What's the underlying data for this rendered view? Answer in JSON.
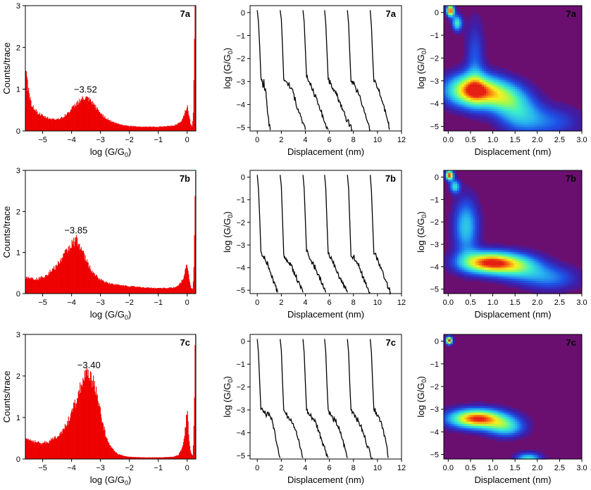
{
  "colors": {
    "histogram_fill": "#ee0000",
    "trace_stroke": "#000000",
    "density_background": "#6a0f70",
    "axis": "#000000"
  },
  "chart_data": [
    {
      "type": "bar",
      "panel": "7a",
      "chart_kind": "histogram",
      "xlabel_main": "log (G/G",
      "xlabel_sub": "0",
      "xlabel_end": ")",
      "ylabel": "Counts/trace",
      "xlim": [
        -5.6,
        0.3
      ],
      "ylim": [
        0,
        3
      ],
      "xticks": [
        -5,
        -4,
        -3,
        -2,
        -1,
        0
      ],
      "yticks": [
        0,
        1,
        2,
        3
      ],
      "peak_label": "−3.52",
      "peak_x": -3.52,
      "profile": {
        "x": [
          -5.6,
          -5.5,
          -5.4,
          -5.2,
          -5.0,
          -4.8,
          -4.6,
          -4.4,
          -4.2,
          -4.0,
          -3.8,
          -3.6,
          -3.52,
          -3.4,
          -3.2,
          -3.0,
          -2.8,
          -2.6,
          -2.4,
          -2.2,
          -2.0,
          -1.5,
          -1.0,
          -0.5,
          -0.3,
          -0.2,
          -0.1,
          0.0,
          0.05,
          0.12,
          0.18,
          0.22,
          0.26,
          0.3
        ],
        "y": [
          1.5,
          1.0,
          0.65,
          0.45,
          0.35,
          0.3,
          0.28,
          0.3,
          0.38,
          0.52,
          0.68,
          0.77,
          0.78,
          0.74,
          0.6,
          0.42,
          0.3,
          0.22,
          0.17,
          0.14,
          0.12,
          0.1,
          0.1,
          0.12,
          0.18,
          0.25,
          0.4,
          0.62,
          0.42,
          0.15,
          0.1,
          0.6,
          3.0,
          3.0
        ]
      }
    },
    {
      "type": "line",
      "panel": "7a",
      "chart_kind": "traces",
      "xlabel": "Displacement (nm)",
      "ylabel_main": "log (G/G",
      "ylabel_sub": "0",
      "ylabel_end": ")",
      "xlim": [
        -0.6,
        12
      ],
      "ylim": [
        -5.15,
        0.3
      ],
      "xticks": [
        0,
        2,
        4,
        6,
        8,
        10,
        12
      ],
      "yticks": [
        0,
        -1,
        -2,
        -3,
        -4,
        -5
      ],
      "traces": [
        {
          "x": [
            0.0,
            0.1,
            0.2,
            0.3,
            0.4,
            0.5,
            0.55,
            0.6,
            0.7,
            0.8,
            0.9,
            1.0,
            1.1
          ],
          "y": [
            0.1,
            -0.4,
            -1.5,
            -2.8,
            -3.0,
            -3.2,
            -2.9,
            -3.3,
            -3.4,
            -4.0,
            -4.5,
            -4.9,
            -5.1
          ]
        },
        {
          "x": [
            1.9,
            2.0,
            2.1,
            2.2,
            2.4,
            2.6,
            2.8,
            3.0,
            3.2,
            3.4,
            3.6,
            3.8,
            4.0
          ],
          "y": [
            0.1,
            -0.3,
            -1.5,
            -2.9,
            -3.0,
            -3.1,
            -3.3,
            -3.5,
            -3.9,
            -4.2,
            -4.5,
            -4.8,
            -5.1
          ]
        },
        {
          "x": [
            3.8,
            3.9,
            4.0,
            4.1,
            4.3,
            4.5,
            4.7,
            4.9,
            5.1,
            5.3,
            5.5,
            5.7,
            5.9
          ],
          "y": [
            0.1,
            -0.4,
            -1.6,
            -2.8,
            -3.0,
            -3.2,
            -3.5,
            -3.7,
            -4.0,
            -4.3,
            -4.6,
            -4.9,
            -5.1
          ]
        },
        {
          "x": [
            5.6,
            5.7,
            5.8,
            5.9,
            6.1,
            6.3,
            6.5,
            6.7,
            6.9,
            7.1,
            7.3,
            7.5,
            7.7,
            7.9
          ],
          "y": [
            0.1,
            -0.5,
            -1.7,
            -2.9,
            -3.1,
            -3.3,
            -3.5,
            -3.7,
            -3.9,
            -4.2,
            -4.5,
            -4.7,
            -4.9,
            -5.1
          ]
        },
        {
          "x": [
            7.5,
            7.6,
            7.7,
            7.8,
            8.0,
            8.2,
            8.4,
            8.6,
            8.8,
            9.0,
            9.2,
            9.4
          ],
          "y": [
            0.1,
            -0.5,
            -1.8,
            -3.0,
            -3.1,
            -3.3,
            -3.5,
            -3.8,
            -4.1,
            -4.4,
            -4.8,
            -5.1
          ]
        },
        {
          "x": [
            9.4,
            9.5,
            9.6,
            9.7,
            9.9,
            10.1,
            10.3,
            10.5,
            10.7,
            10.9,
            11.0
          ],
          "y": [
            0.1,
            -0.6,
            -1.9,
            -3.0,
            -3.1,
            -3.4,
            -3.7,
            -4.0,
            -4.4,
            -4.8,
            -5.1
          ]
        }
      ]
    },
    {
      "type": "heatmap",
      "panel": "7a",
      "chart_kind": "2d-histogram",
      "xlabel": "Displacement (nm)",
      "ylabel_main": "log (G/G",
      "ylabel_sub": "0",
      "ylabel_end": ")",
      "xlim": [
        -0.1,
        3.0
      ],
      "ylim": [
        -5.2,
        0.3
      ],
      "xticks": [
        0.0,
        0.5,
        1.0,
        1.5,
        2.0,
        2.5,
        3.0
      ],
      "yticks": [
        0,
        -1,
        -2,
        -3,
        -4,
        -5
      ],
      "hotspots": [
        {
          "x": 0.05,
          "y": 0.1,
          "sx": 0.06,
          "sy": 0.18,
          "v": 1.0
        },
        {
          "x": 0.2,
          "y": -0.45,
          "sx": 0.08,
          "sy": 0.25,
          "v": 0.55
        },
        {
          "x": 0.55,
          "y": -3.4,
          "sx": 0.42,
          "sy": 0.5,
          "v": 0.95
        },
        {
          "x": 1.25,
          "y": -3.7,
          "sx": 0.35,
          "sy": 0.5,
          "v": 0.45
        },
        {
          "x": 0.6,
          "y": -2.0,
          "sx": 0.15,
          "sy": 1.2,
          "v": 0.25
        },
        {
          "x": 1.6,
          "y": -4.4,
          "sx": 0.35,
          "sy": 0.6,
          "v": 0.35
        },
        {
          "x": 2.3,
          "y": -4.8,
          "sx": 0.5,
          "sy": 0.5,
          "v": 0.25
        }
      ]
    },
    {
      "type": "bar",
      "panel": "7b",
      "chart_kind": "histogram",
      "xlabel_main": "log (G/G",
      "xlabel_sub": "0",
      "xlabel_end": ")",
      "ylabel": "Counts/trace",
      "xlim": [
        -5.6,
        0.3
      ],
      "ylim": [
        0,
        3
      ],
      "xticks": [
        -5,
        -4,
        -3,
        -2,
        -1,
        0
      ],
      "yticks": [
        0,
        1,
        2,
        3
      ],
      "peak_label": "−3.85",
      "peak_x": -3.85,
      "profile": {
        "x": [
          -5.6,
          -5.4,
          -5.2,
          -5.0,
          -4.8,
          -4.6,
          -4.4,
          -4.2,
          -4.0,
          -3.85,
          -3.7,
          -3.5,
          -3.3,
          -3.1,
          -2.9,
          -2.7,
          -2.5,
          -2.3,
          -2.0,
          -1.5,
          -1.0,
          -0.5,
          -0.3,
          -0.15,
          -0.05,
          0.0,
          0.05,
          0.12,
          0.2,
          0.24,
          0.28,
          0.3
        ],
        "y": [
          0.4,
          0.38,
          0.35,
          0.4,
          0.5,
          0.62,
          0.78,
          1.0,
          1.2,
          1.33,
          1.15,
          0.8,
          0.55,
          0.38,
          0.3,
          0.25,
          0.22,
          0.2,
          0.18,
          0.15,
          0.13,
          0.14,
          0.2,
          0.35,
          0.6,
          0.7,
          0.45,
          0.15,
          0.1,
          0.8,
          3.0,
          3.0
        ]
      }
    },
    {
      "type": "line",
      "panel": "7b",
      "chart_kind": "traces",
      "xlabel": "Displacement (nm)",
      "ylabel_main": "log (G/G",
      "ylabel_sub": "0",
      "ylabel_end": ")",
      "xlim": [
        -0.6,
        12
      ],
      "ylim": [
        -5.15,
        0.3
      ],
      "xticks": [
        0,
        2,
        4,
        6,
        8,
        10,
        12
      ],
      "yticks": [
        0,
        -1,
        -2,
        -3,
        -4,
        -5
      ],
      "traces": [
        {
          "x": [
            0.0,
            0.1,
            0.2,
            0.3,
            0.5,
            0.7,
            0.9,
            1.1,
            1.3,
            1.5,
            1.7
          ],
          "y": [
            0.1,
            -0.5,
            -1.8,
            -3.3,
            -3.5,
            -3.7,
            -3.9,
            -4.2,
            -4.5,
            -4.8,
            -5.1
          ]
        },
        {
          "x": [
            1.9,
            2.0,
            2.1,
            2.2,
            2.4,
            2.6,
            2.8,
            3.0,
            3.2,
            3.4,
            3.6,
            3.8
          ],
          "y": [
            0.1,
            -0.4,
            -1.9,
            -3.4,
            -3.6,
            -3.8,
            -3.9,
            -4.1,
            -4.4,
            -4.6,
            -4.9,
            -5.1
          ]
        },
        {
          "x": [
            3.8,
            3.9,
            4.0,
            4.1,
            4.3,
            4.5,
            4.7,
            4.9,
            5.1,
            5.3,
            5.5,
            5.7
          ],
          "y": [
            0.1,
            -0.5,
            -1.9,
            -3.3,
            -3.5,
            -3.7,
            -3.9,
            -4.1,
            -4.3,
            -4.6,
            -4.9,
            -5.1
          ]
        },
        {
          "x": [
            5.6,
            5.7,
            5.8,
            5.9,
            6.1,
            6.3,
            6.5,
            6.7,
            6.9,
            7.1,
            7.3,
            7.5
          ],
          "y": [
            0.1,
            -0.5,
            -2.0,
            -3.4,
            -3.6,
            -3.8,
            -4.0,
            -4.2,
            -4.5,
            -4.7,
            -4.9,
            -5.1
          ]
        },
        {
          "x": [
            7.5,
            7.6,
            7.7,
            7.8,
            8.0,
            8.2,
            8.4,
            8.6,
            8.8,
            9.0,
            9.2,
            9.4
          ],
          "y": [
            0.1,
            -0.5,
            -2.0,
            -3.5,
            -3.5,
            -3.7,
            -3.9,
            -4.2,
            -4.4,
            -4.7,
            -4.9,
            -5.1
          ]
        },
        {
          "x": [
            9.4,
            9.5,
            9.6,
            9.7,
            9.9,
            10.1,
            10.3,
            10.5,
            10.7,
            10.9,
            11.1
          ],
          "y": [
            0.1,
            -0.6,
            -2.0,
            -3.4,
            -3.5,
            -3.8,
            -4.0,
            -4.3,
            -4.6,
            -4.9,
            -5.1
          ]
        }
      ]
    },
    {
      "type": "heatmap",
      "panel": "7b",
      "chart_kind": "2d-histogram",
      "xlabel": "Displacement (nm)",
      "ylabel_main": "log (G/G",
      "ylabel_sub": "0",
      "ylabel_end": ")",
      "xlim": [
        -0.1,
        3.0
      ],
      "ylim": [
        -5.2,
        0.3
      ],
      "xticks": [
        0.0,
        0.5,
        1.0,
        1.5,
        2.0,
        2.5,
        3.0
      ],
      "yticks": [
        0,
        -1,
        -2,
        -3,
        -4,
        -5
      ],
      "hotspots": [
        {
          "x": 0.03,
          "y": 0.1,
          "sx": 0.06,
          "sy": 0.15,
          "v": 1.0
        },
        {
          "x": 0.15,
          "y": -0.4,
          "sx": 0.08,
          "sy": 0.2,
          "v": 0.5
        },
        {
          "x": 0.9,
          "y": -3.8,
          "sx": 0.45,
          "sy": 0.35,
          "v": 0.95
        },
        {
          "x": 0.4,
          "y": -2.2,
          "sx": 0.2,
          "sy": 0.9,
          "v": 0.45
        },
        {
          "x": 1.6,
          "y": -4.0,
          "sx": 0.4,
          "sy": 0.4,
          "v": 0.45
        },
        {
          "x": 2.3,
          "y": -4.5,
          "sx": 0.45,
          "sy": 0.4,
          "v": 0.3
        }
      ]
    },
    {
      "type": "bar",
      "panel": "7c",
      "chart_kind": "histogram",
      "xlabel_main": "log (G/G",
      "xlabel_sub": "0",
      "xlabel_end": ")",
      "ylabel": "Counts/trace",
      "xlim": [
        -5.6,
        0.3
      ],
      "ylim": [
        0,
        3
      ],
      "xticks": [
        -5,
        -4,
        -3,
        -2,
        -1,
        0
      ],
      "yticks": [
        0,
        1,
        2,
        3
      ],
      "peak_label": "−3.40",
      "peak_x": -3.4,
      "profile": {
        "x": [
          -5.6,
          -5.4,
          -5.2,
          -5.0,
          -4.8,
          -4.6,
          -4.4,
          -4.2,
          -4.0,
          -3.8,
          -3.6,
          -3.4,
          -3.2,
          -3.0,
          -2.8,
          -2.6,
          -2.4,
          -2.2,
          -2.0,
          -1.5,
          -1.0,
          -0.5,
          -0.3,
          -0.15,
          -0.05,
          0.0,
          0.05,
          0.12,
          0.2,
          0.24,
          0.28,
          0.3
        ],
        "y": [
          0.5,
          0.45,
          0.4,
          0.38,
          0.42,
          0.5,
          0.62,
          0.8,
          1.1,
          1.5,
          1.9,
          2.05,
          1.8,
          1.1,
          0.5,
          0.25,
          0.12,
          0.08,
          0.05,
          0.04,
          0.04,
          0.05,
          0.1,
          0.3,
          0.8,
          1.25,
          0.6,
          0.15,
          0.08,
          1.0,
          3.0,
          3.0
        ]
      }
    },
    {
      "type": "line",
      "panel": "7c",
      "chart_kind": "traces",
      "xlabel": "Displacement (nm)",
      "ylabel_main": "log (G/G",
      "ylabel_sub": "0",
      "ylabel_end": ")",
      "xlim": [
        -0.6,
        12
      ],
      "ylim": [
        -5.15,
        0.3
      ],
      "xticks": [
        0,
        2,
        4,
        6,
        8,
        10,
        12
      ],
      "yticks": [
        0,
        -1,
        -2,
        -3,
        -4,
        -5
      ],
      "traces": [
        {
          "x": [
            0.0,
            0.1,
            0.2,
            0.3,
            0.5,
            0.7,
            0.9,
            1.1,
            1.3,
            1.5,
            1.7,
            1.9
          ],
          "y": [
            0.1,
            -0.5,
            -1.8,
            -3.0,
            -3.1,
            -3.2,
            -3.1,
            -3.3,
            -3.6,
            -4.1,
            -4.6,
            -5.1
          ]
        },
        {
          "x": [
            1.9,
            2.0,
            2.1,
            2.2,
            2.4,
            2.6,
            2.8,
            3.0,
            3.2,
            3.4,
            3.6,
            3.8
          ],
          "y": [
            0.1,
            -0.4,
            -1.8,
            -3.0,
            -3.2,
            -3.3,
            -3.4,
            -3.6,
            -3.9,
            -4.3,
            -4.7,
            -5.1
          ]
        },
        {
          "x": [
            3.8,
            3.9,
            4.0,
            4.1,
            4.3,
            4.5,
            4.7,
            4.9,
            5.1,
            5.3,
            5.5,
            5.7,
            5.9
          ],
          "y": [
            0.1,
            -0.5,
            -1.8,
            -3.0,
            -3.2,
            -3.3,
            -3.4,
            -3.6,
            -3.9,
            -4.2,
            -4.5,
            -4.8,
            -5.1
          ]
        },
        {
          "x": [
            5.6,
            5.7,
            5.8,
            5.9,
            6.1,
            6.3,
            6.5,
            6.7,
            6.9,
            7.1,
            7.3,
            7.5
          ],
          "y": [
            0.1,
            -0.5,
            -1.9,
            -3.0,
            -3.2,
            -3.4,
            -3.5,
            -3.7,
            -4.0,
            -4.3,
            -4.7,
            -5.1
          ]
        },
        {
          "x": [
            7.5,
            7.6,
            7.7,
            7.8,
            8.0,
            8.2,
            8.4,
            8.6,
            8.8,
            9.0,
            9.2,
            9.4,
            9.6
          ],
          "y": [
            0.1,
            -0.5,
            -1.9,
            -3.0,
            -3.1,
            -3.3,
            -3.5,
            -3.7,
            -4.0,
            -4.3,
            -4.6,
            -4.9,
            -5.1
          ]
        },
        {
          "x": [
            9.4,
            9.5,
            9.6,
            9.7,
            9.9,
            10.1,
            10.3,
            10.5,
            10.7,
            10.9
          ],
          "y": [
            0.1,
            -0.5,
            -1.8,
            -3.0,
            -3.1,
            -3.3,
            -3.5,
            -3.9,
            -4.4,
            -5.1
          ]
        }
      ]
    },
    {
      "type": "heatmap",
      "panel": "7c",
      "chart_kind": "2d-histogram",
      "xlabel": "Displacement (nm)",
      "ylabel_main": "log (G/G",
      "ylabel_sub": "0",
      "ylabel_end": ")",
      "xlim": [
        -0.1,
        3.0
      ],
      "ylim": [
        -5.2,
        0.3
      ],
      "xticks": [
        0.0,
        0.5,
        1.0,
        1.5,
        2.0,
        2.5,
        3.0
      ],
      "yticks": [
        0,
        -1,
        -2,
        -3,
        -4,
        -5
      ],
      "hotspots": [
        {
          "x": 0.02,
          "y": 0.05,
          "sx": 0.05,
          "sy": 0.12,
          "v": 1.0
        },
        {
          "x": 0.65,
          "y": -3.4,
          "sx": 0.45,
          "sy": 0.3,
          "v": 1.0
        },
        {
          "x": 1.3,
          "y": -3.8,
          "sx": 0.3,
          "sy": 0.3,
          "v": 0.45
        },
        {
          "x": 1.8,
          "y": -5.2,
          "sx": 0.2,
          "sy": 0.2,
          "v": 0.55
        }
      ]
    }
  ]
}
